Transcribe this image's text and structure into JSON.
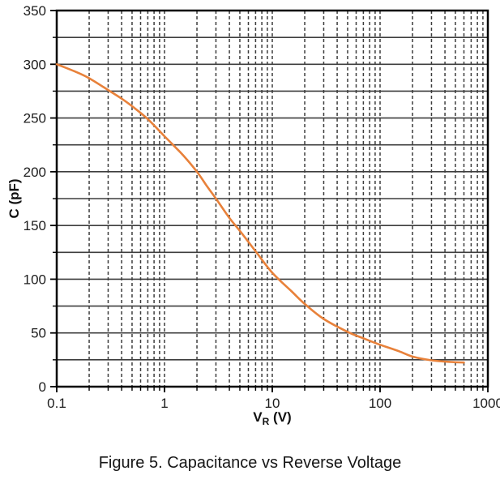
{
  "figure": {
    "caption": "Figure 5. Capacitance vs Reverse Voltage"
  },
  "chart_data": {
    "type": "line",
    "title": "",
    "xlabel": {
      "symbol": "V",
      "subscript": "R",
      "unit": " (V)"
    },
    "ylabel": "C (pF)",
    "x_scale": "log",
    "x_range": [
      0.1,
      1000
    ],
    "y_range": [
      0,
      350
    ],
    "x_ticks": [
      0.1,
      1,
      10,
      100,
      1000
    ],
    "x_tick_labels": [
      "0.1",
      "1",
      "10",
      "100",
      "1000"
    ],
    "y_ticks_major": [
      0,
      50,
      100,
      150,
      200,
      250,
      300,
      350
    ],
    "y_tick_labels": [
      "0",
      "50",
      "100",
      "150",
      "200",
      "250",
      "300",
      "350"
    ],
    "y_grid_interval": 25,
    "grid": {
      "horizontal": "solid",
      "vertical": "dashed",
      "legend": "none"
    },
    "colors": {
      "curve": "#E8813A",
      "grid": "#3d3d3d",
      "border": "#000000",
      "text": "#1d1d1d"
    },
    "series": [
      {
        "name": "Capacitance vs Reverse Voltage",
        "color": "#E8813A",
        "points": [
          [
            0.1,
            300
          ],
          [
            0.15,
            293
          ],
          [
            0.2,
            287
          ],
          [
            0.3,
            276
          ],
          [
            0.4,
            268
          ],
          [
            0.5,
            261
          ],
          [
            0.7,
            249
          ],
          [
            1.0,
            233
          ],
          [
            1.2,
            225
          ],
          [
            1.5,
            215
          ],
          [
            2.0,
            200
          ],
          [
            2.5,
            186
          ],
          [
            3.0,
            175
          ],
          [
            4.0,
            157
          ],
          [
            5.0,
            145
          ],
          [
            7.0,
            126
          ],
          [
            10,
            106
          ],
          [
            15,
            89
          ],
          [
            20,
            77
          ],
          [
            30,
            63
          ],
          [
            50,
            51
          ],
          [
            70,
            45
          ],
          [
            100,
            39
          ],
          [
            150,
            33
          ],
          [
            200,
            28
          ],
          [
            300,
            24.5
          ],
          [
            450,
            23
          ],
          [
            600,
            22.5
          ]
        ]
      }
    ]
  }
}
